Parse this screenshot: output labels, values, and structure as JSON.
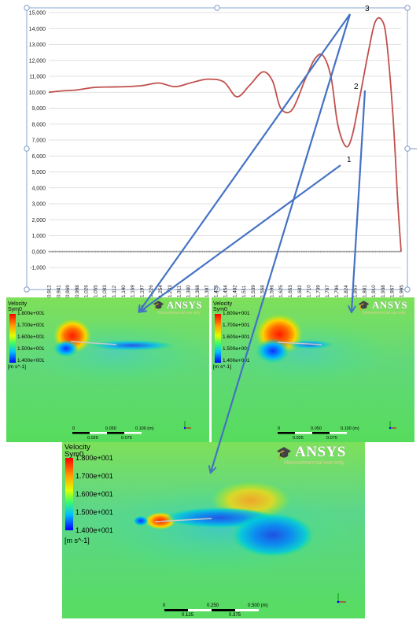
{
  "chart_data": {
    "type": "line",
    "title": "",
    "xlabel": "",
    "ylabel": "",
    "ylim": [
      -1000,
      15000
    ],
    "y_ticks": [
      "-1,000",
      "0,000",
      "1,000",
      "2,000",
      "3,000",
      "4,000",
      "5,000",
      "6,000",
      "7,000",
      "8,000",
      "9,000",
      "10,000",
      "11,000",
      "12,000",
      "13,000",
      "14,000",
      "15,000"
    ],
    "x_ticks": [
      "0,912",
      "0,941",
      "0,969",
      "0,998",
      "1,026",
      "1,055",
      "1,083",
      "1,112",
      "1,140",
      "1,169",
      "1,197",
      "1,226",
      "1,254",
      "1,283",
      "1,311",
      "1,340",
      "1,368",
      "1,397",
      "1,425",
      "1,454",
      "1,482",
      "1,511",
      "1,539",
      "1,568",
      "1,596",
      "1,625",
      "1,653",
      "1,682",
      "1,710",
      "1,739",
      "1,767",
      "1,796",
      "1,824",
      "1,853",
      "1,881",
      "1,910",
      "1,938",
      "1,967",
      "1,995"
    ],
    "grid": "horizontal",
    "series_color": "#c0504d",
    "series": [
      {
        "x": [
          0.912,
          0.95,
          1.0,
          1.05,
          1.1,
          1.15,
          1.2,
          1.25,
          1.3,
          1.35,
          1.4,
          1.45,
          1.49,
          1.53,
          1.57,
          1.6,
          1.625,
          1.66,
          1.7,
          1.73,
          1.755,
          1.78,
          1.8,
          1.825,
          1.845,
          1.87,
          1.895,
          1.915,
          1.935,
          1.95,
          1.97,
          1.985,
          1.995
        ],
        "y": [
          10000,
          10080,
          10150,
          10300,
          10330,
          10350,
          10420,
          10580,
          10350,
          10600,
          10820,
          10650,
          9720,
          10450,
          11280,
          10700,
          9000,
          8900,
          10800,
          12100,
          12300,
          10900,
          8000,
          6600,
          7300,
          9900,
          12600,
          14400,
          14550,
          13300,
          8500,
          3000,
          0
        ]
      }
    ]
  },
  "annotations": [
    "3",
    "2",
    "1"
  ],
  "arrow_color": "#4472c4",
  "contour_panels": [
    {
      "legend_title": "Velocity\nSym0",
      "legend_ticks": [
        "1.800e+001",
        "1.700e+001",
        "1.600e+001",
        "1.500e+001",
        "1.400e+001"
      ],
      "units": "[m s^-1]",
      "brand": "ANSYS",
      "brand_sub": "Noncommercial use only",
      "scale_labels": [
        "0",
        "0.050",
        "0.100 (m)",
        "0.025",
        "0.075"
      ]
    },
    {
      "legend_title": "Velocity\nSym0",
      "legend_ticks": [
        "1.800e+001",
        "1.700e+001",
        "1.600e+001",
        "1.500e+001",
        "1.400e+001"
      ],
      "units": "[m s^-1]",
      "brand": "ANSYS",
      "brand_sub": "Noncommercial use only",
      "scale_labels": [
        "0",
        "0.050",
        "0.100 (m)",
        "0.025",
        "0.075"
      ]
    },
    {
      "legend_title": "Velocity\nSym0",
      "legend_ticks": [
        "1.800e+001",
        "1.700e+001",
        "1.600e+001",
        "1.500e+001",
        "1.400e+001"
      ],
      "units": "[m s^-1]",
      "brand": "ANSYS",
      "brand_sub": "Noncommercial use only",
      "scale_labels": [
        "0",
        "0.250",
        "0.500 (m)",
        "0.125",
        "0.375"
      ]
    }
  ]
}
